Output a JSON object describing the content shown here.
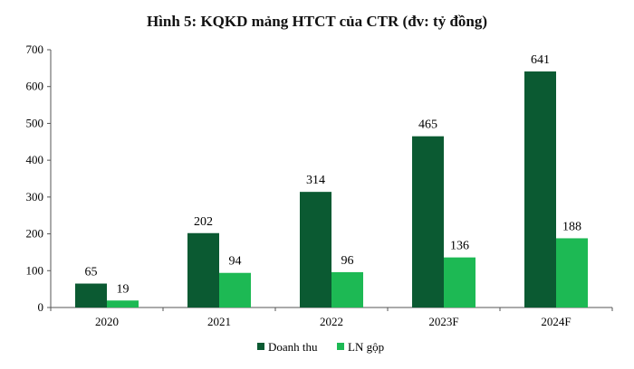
{
  "chart_data": {
    "type": "bar",
    "title": "Hình 5: KQKD mảng HTCT của CTR (đv: tỷ đồng)",
    "categories": [
      "2020",
      "2021",
      "2022",
      "2023F",
      "2024F"
    ],
    "series": [
      {
        "name": "Doanh thu",
        "values": [
          65,
          202,
          314,
          465,
          641
        ],
        "color": "#0b5a32"
      },
      {
        "name": "LN gộp",
        "values": [
          19,
          94,
          96,
          136,
          188
        ],
        "color": "#1db954"
      }
    ],
    "yticks": [
      "0",
      "100",
      "200",
      "300",
      "400",
      "500",
      "600",
      "700"
    ],
    "ylim": [
      0,
      700
    ],
    "grid": false,
    "legend_position": "bottom-center"
  }
}
